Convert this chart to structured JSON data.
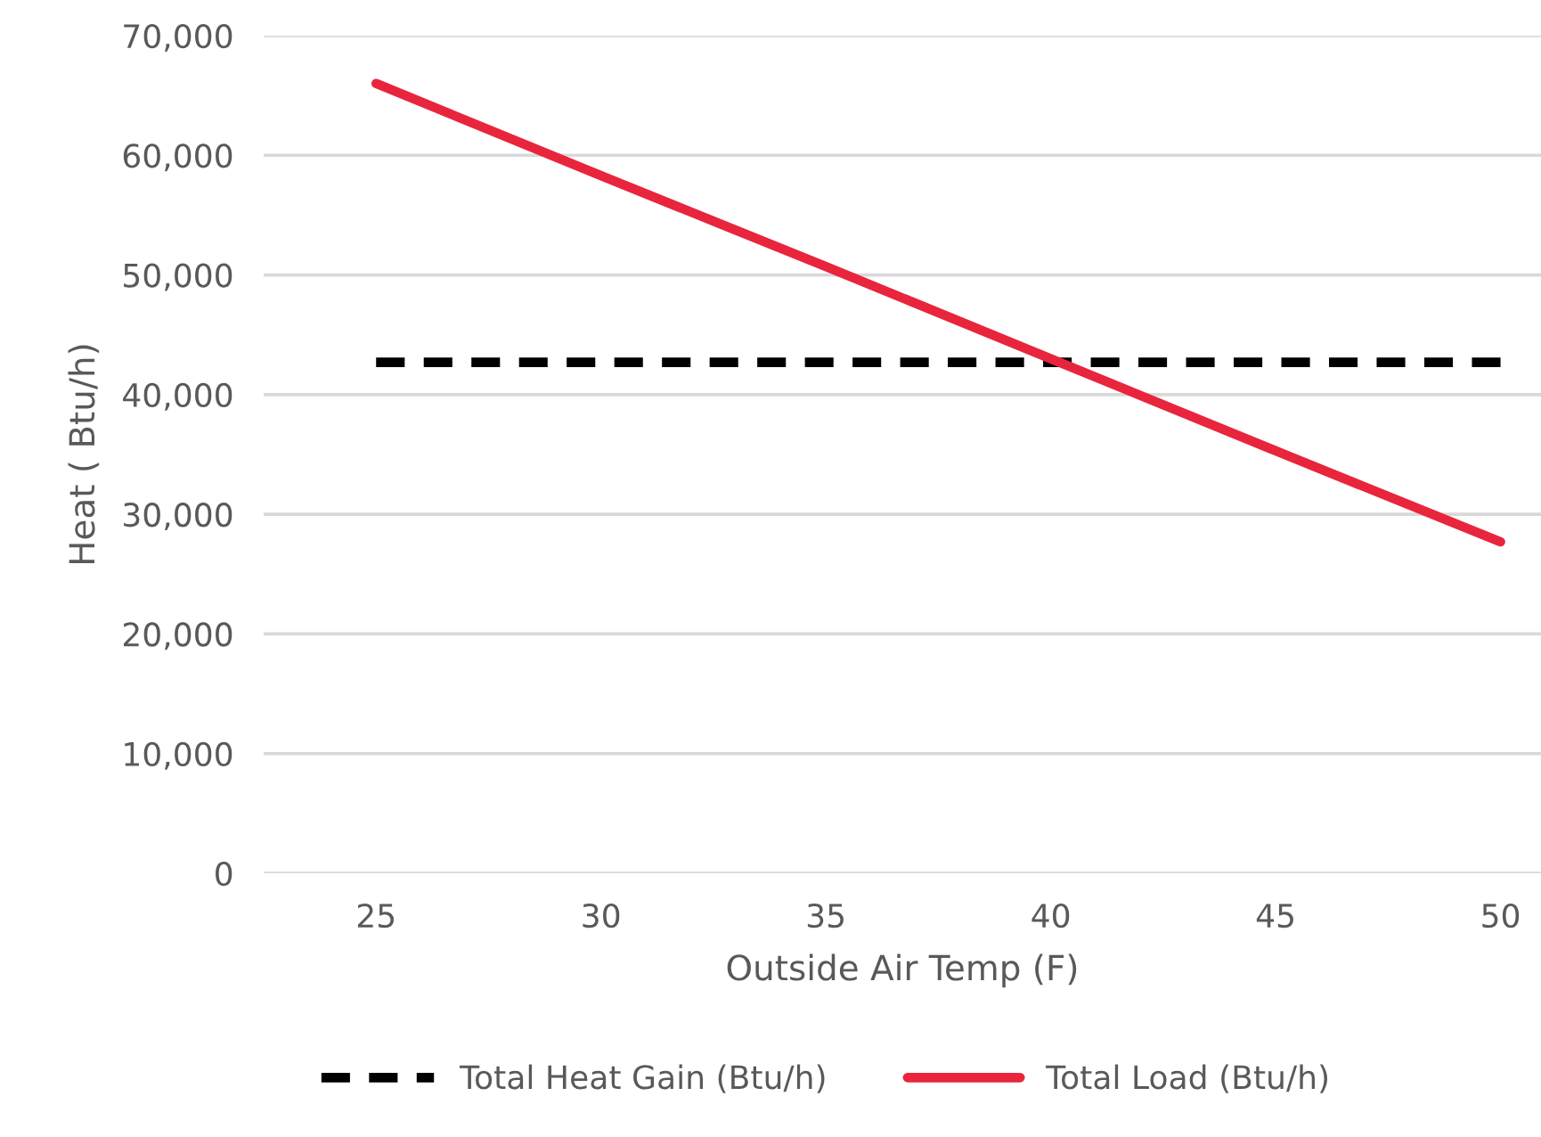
{
  "chart_data": {
    "type": "line",
    "xlabel": "Outside Air Temp (F)",
    "ylabel": "Heat ( Btu/h)",
    "x": [
      25,
      30,
      35,
      40,
      45,
      50
    ],
    "series": [
      {
        "name": "Total Heat Gain (Btu/h)",
        "color": "#000000",
        "line_style": "dashed",
        "values": [
          42700,
          42700,
          42700,
          42700,
          42700,
          42700
        ]
      },
      {
        "name": "Total Load (Btu/h)",
        "color": "#e8253d",
        "line_style": "solid",
        "values": [
          66000,
          58300,
          50700,
          43000,
          35300,
          27700
        ]
      }
    ],
    "xlim": [
      22.5,
      50.9
    ],
    "xticks": [
      25,
      30,
      35,
      40,
      45,
      50
    ],
    "ylim": [
      0,
      70000
    ],
    "yticks": [
      {
        "value": 0,
        "label": "0"
      },
      {
        "value": 10000,
        "label": "10,000"
      },
      {
        "value": 20000,
        "label": "20,000"
      },
      {
        "value": 30000,
        "label": "30,000"
      },
      {
        "value": 40000,
        "label": "40,000"
      },
      {
        "value": 50000,
        "label": "50,000"
      },
      {
        "value": 60000,
        "label": "60,000"
      },
      {
        "value": 70000,
        "label": "70,000"
      }
    ],
    "grid": "y",
    "legend": "bottom",
    "marker": "none"
  }
}
